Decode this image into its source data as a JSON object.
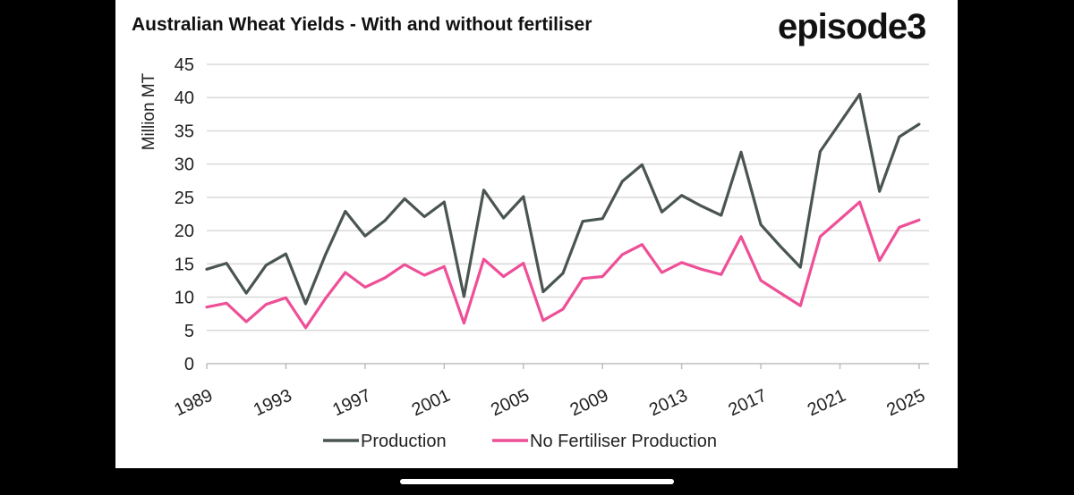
{
  "header": {
    "title": "Australian Wheat Yields - With and without fertiliser",
    "logo_text": "episode3"
  },
  "chart_data": {
    "type": "line",
    "title": "Australian Wheat Yields - With and without fertiliser",
    "xlabel": "",
    "ylabel": "Million MT",
    "ylim": [
      0,
      45
    ],
    "xlim": [
      1989,
      2025.5
    ],
    "yticks": [
      "0",
      "5",
      "10",
      "15",
      "20",
      "25",
      "30",
      "35",
      "40",
      "45"
    ],
    "xticks": [
      "1989",
      "1993",
      "1997",
      "2001",
      "2005",
      "2009",
      "2013",
      "2017",
      "2021",
      "2025"
    ],
    "grid": "horizontal",
    "legend": "bottom",
    "x": [
      1989,
      1990,
      1991,
      1992,
      1993,
      1994,
      1995,
      1996,
      1997,
      1998,
      1999,
      2000,
      2001,
      2002,
      2003,
      2004,
      2005,
      2006,
      2007,
      2008,
      2009,
      2010,
      2011,
      2012,
      2013,
      2014,
      2015,
      2016,
      2017,
      2018,
      2019,
      2020,
      2021,
      2022,
      2023,
      2024,
      2025
    ],
    "series": [
      {
        "name": "Production",
        "color": "#4a5552",
        "values": [
          14.2,
          15.1,
          10.6,
          14.8,
          16.5,
          9.0,
          16.4,
          22.9,
          19.2,
          21.5,
          24.8,
          22.1,
          24.3,
          10.1,
          26.1,
          21.9,
          25.1,
          10.8,
          13.6,
          21.4,
          21.8,
          27.4,
          29.9,
          22.8,
          25.3,
          23.7,
          22.3,
          31.8,
          20.9,
          17.6,
          14.5,
          31.9,
          36.2,
          40.5,
          25.9,
          34.1,
          36.0
        ]
      },
      {
        "name": "No Fertiliser Production",
        "color": "#ee4f97",
        "values": [
          8.5,
          9.1,
          6.3,
          8.9,
          9.9,
          5.4,
          9.8,
          13.7,
          11.5,
          12.9,
          14.9,
          13.3,
          14.6,
          6.1,
          15.7,
          13.1,
          15.1,
          6.5,
          8.2,
          12.8,
          13.1,
          16.4,
          17.9,
          13.7,
          15.2,
          14.2,
          13.4,
          19.1,
          12.5,
          10.6,
          8.7,
          19.1,
          21.7,
          24.3,
          15.5,
          20.5,
          21.6
        ]
      }
    ]
  }
}
